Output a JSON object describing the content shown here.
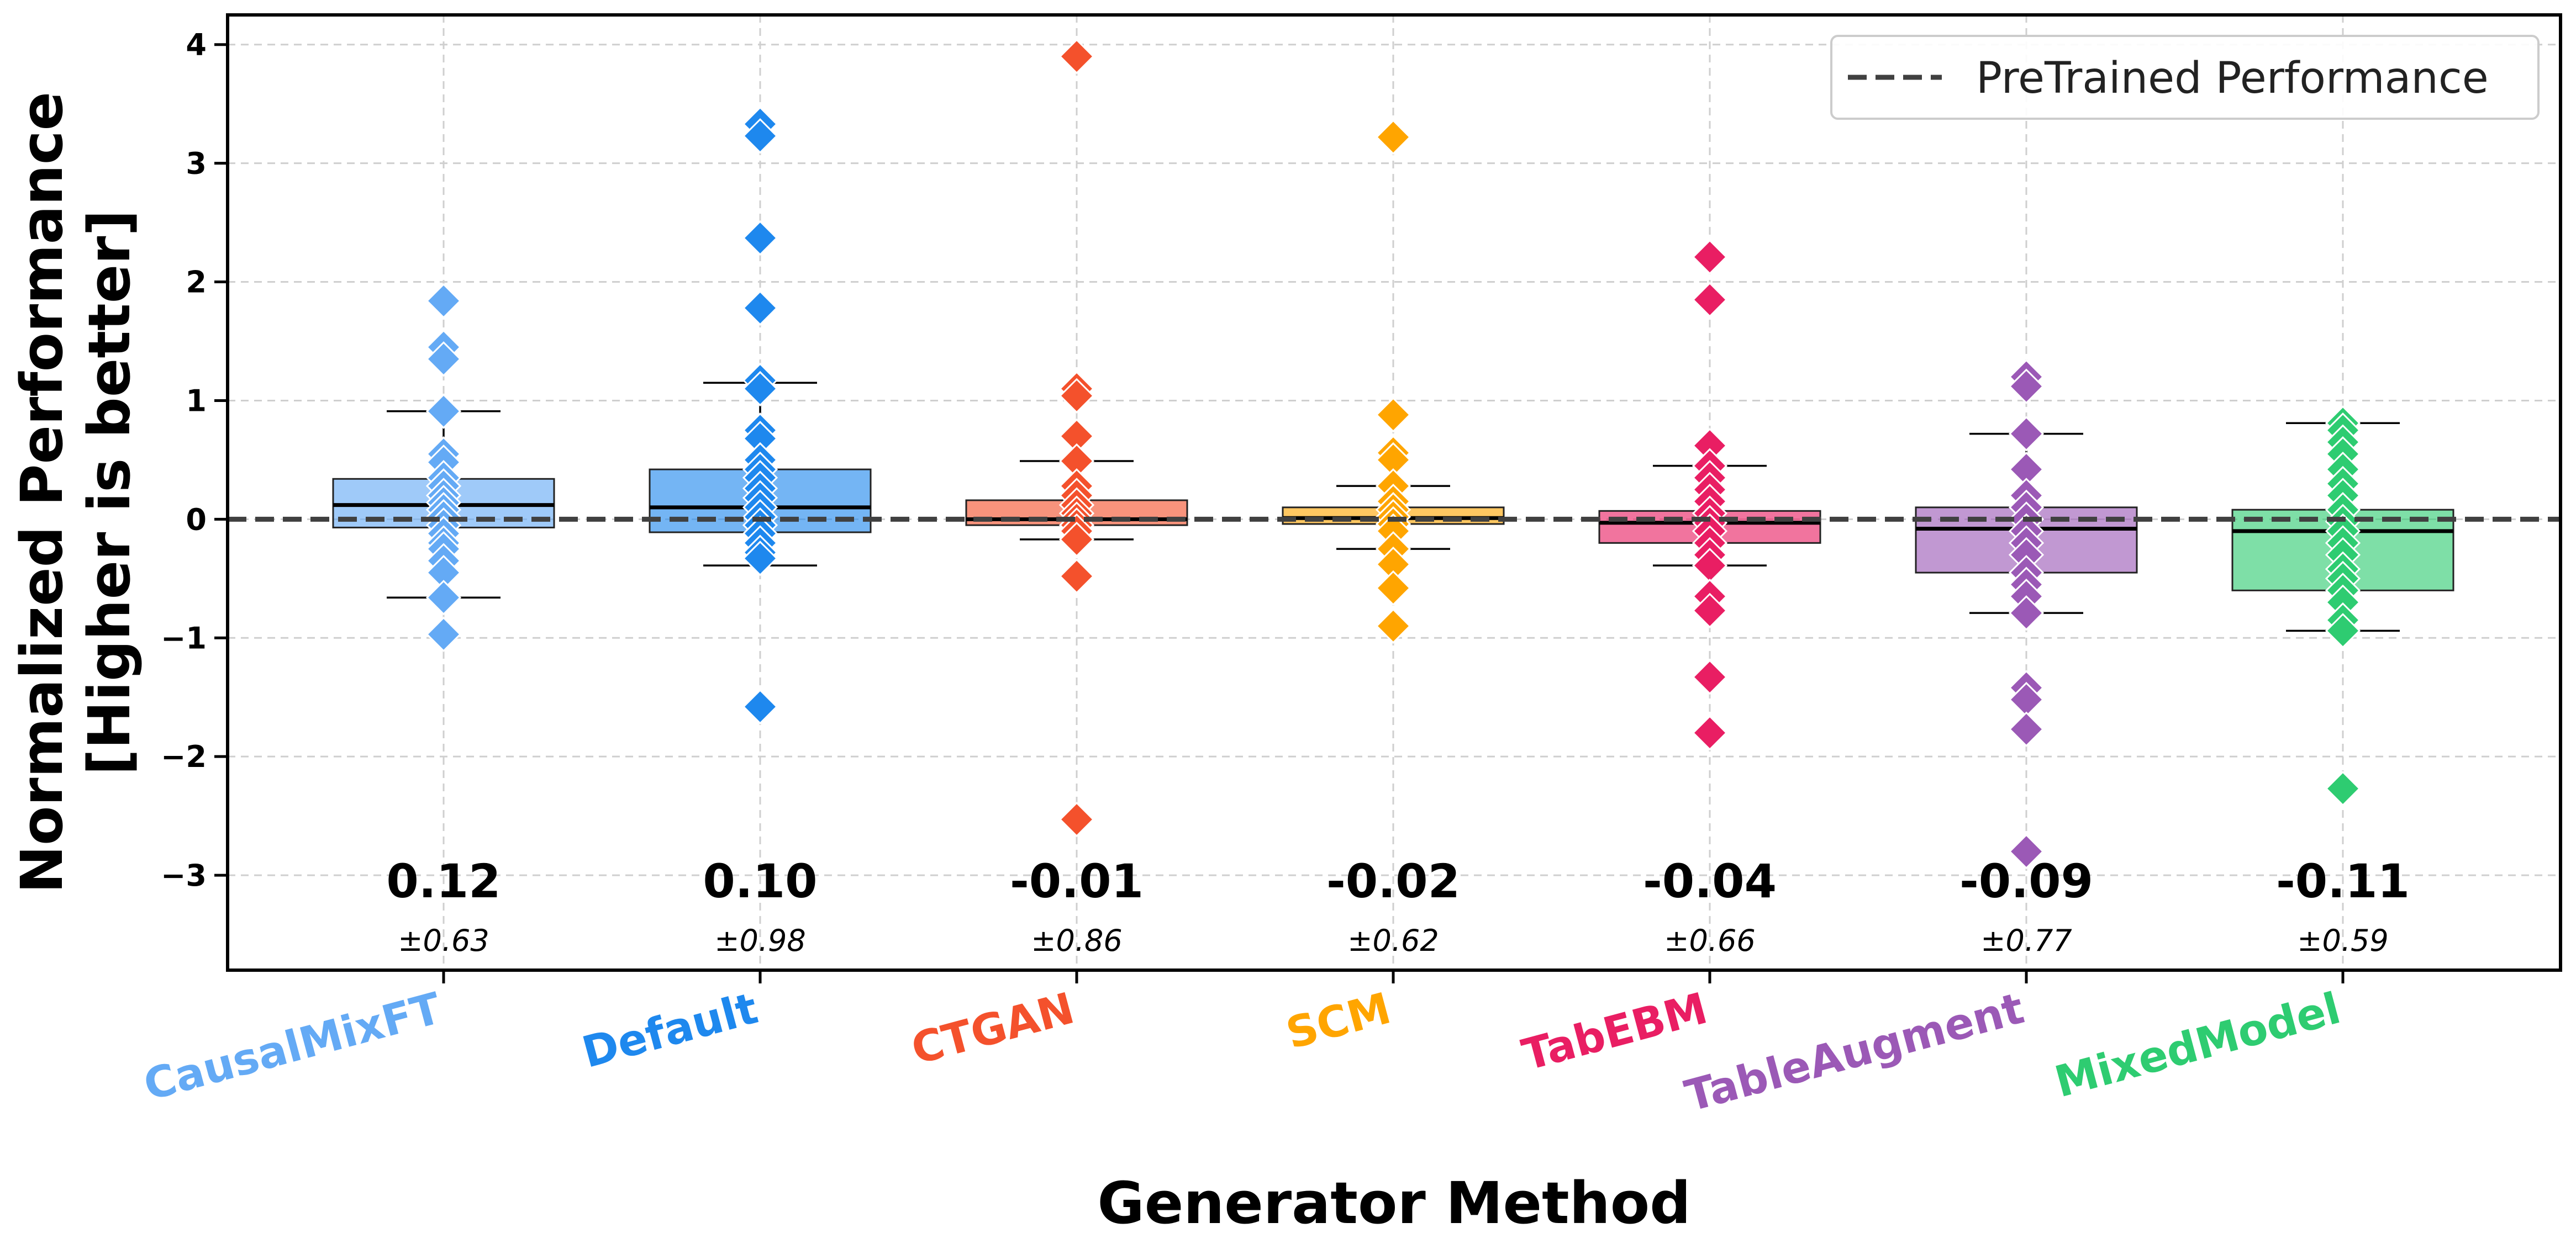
{
  "chart_data": {
    "type": "box",
    "xlabel": "Generator Method",
    "ylabel_lines": [
      "Normalized Performance",
      "[Higher is better]"
    ],
    "ylim": [
      -3.8,
      4.25
    ],
    "yticks": [
      -3,
      -2,
      -1,
      0,
      1,
      2,
      3,
      4
    ],
    "ytick_labels": [
      "−3",
      "−2",
      "−1",
      "0",
      "1",
      "2",
      "3",
      "4"
    ],
    "grid": true,
    "reference_line": {
      "label": "PreTrained Performance",
      "y": 0,
      "style": "dashed",
      "color": "#404040"
    },
    "legend_position": "top-right",
    "categories": [
      "CausalMixFT",
      "Default",
      "CTGAN",
      "SCM",
      "TabEBM",
      "TableAugment",
      "MixedModel"
    ],
    "colors": [
      "#64aaf5",
      "#1e88ee",
      "#f4512c",
      "#ffa500",
      "#e91e63",
      "#9b59b6",
      "#2ecc71"
    ],
    "series": [
      {
        "name": "CausalMixFT",
        "q1": -0.07,
        "median": 0.12,
        "q3": 0.34,
        "whisker_low": -0.66,
        "whisker_high": 0.91,
        "mean_label": "0.12",
        "std_label": "±0.63",
        "points": [
          1.84,
          1.45,
          1.35,
          0.91,
          0.55,
          0.48,
          0.35,
          0.28,
          0.2,
          0.14,
          0.08,
          0.02,
          -0.05,
          -0.12,
          -0.2,
          -0.25,
          -0.35,
          -0.45,
          -0.66,
          -0.97
        ]
      },
      {
        "name": "Default",
        "q1": -0.11,
        "median": 0.1,
        "q3": 0.42,
        "whisker_low": -0.39,
        "whisker_high": 1.15,
        "mean_label": "0.10",
        "std_label": "±0.98",
        "points": [
          3.33,
          3.23,
          2.37,
          1.78,
          1.17,
          1.1,
          0.75,
          0.68,
          0.5,
          0.42,
          0.35,
          0.26,
          0.18,
          0.1,
          0.02,
          -0.05,
          -0.12,
          -0.2,
          -0.28,
          -0.33,
          -1.58
        ]
      },
      {
        "name": "CTGAN",
        "q1": -0.05,
        "median": 0.0,
        "q3": 0.16,
        "whisker_low": -0.17,
        "whisker_high": 0.49,
        "mean_label": "-0.01",
        "std_label": "±0.86",
        "points": [
          3.9,
          1.1,
          1.04,
          0.7,
          0.49,
          0.28,
          0.2,
          0.12,
          0.05,
          0.0,
          -0.05,
          -0.1,
          -0.17,
          -0.48,
          -2.53
        ]
      },
      {
        "name": "SCM",
        "q1": -0.04,
        "median": 0.01,
        "q3": 0.1,
        "whisker_low": -0.25,
        "whisker_high": 0.28,
        "mean_label": "-0.02",
        "std_label": "±0.62",
        "points": [
          3.22,
          0.88,
          0.56,
          0.5,
          0.28,
          0.15,
          0.08,
          0.02,
          -0.04,
          -0.1,
          -0.25,
          -0.38,
          -0.58,
          -0.9
        ]
      },
      {
        "name": "TabEBM",
        "q1": -0.2,
        "median": -0.03,
        "q3": 0.07,
        "whisker_low": -0.39,
        "whisker_high": 0.45,
        "mean_label": "-0.04",
        "std_label": "±0.66",
        "points": [
          2.21,
          1.85,
          0.62,
          0.45,
          0.35,
          0.25,
          0.15,
          0.05,
          -0.03,
          -0.1,
          -0.2,
          -0.3,
          -0.39,
          -0.65,
          -0.77,
          -1.33,
          -1.8
        ]
      },
      {
        "name": "TableAugment",
        "q1": -0.45,
        "median": -0.08,
        "q3": 0.1,
        "whisker_low": -0.79,
        "whisker_high": 0.72,
        "mean_label": "-0.09",
        "std_label": "±0.77",
        "points": [
          1.2,
          1.12,
          0.72,
          0.42,
          0.2,
          0.1,
          0.0,
          -0.1,
          -0.2,
          -0.3,
          -0.45,
          -0.55,
          -0.65,
          -0.79,
          -1.42,
          -1.52,
          -1.77,
          -2.8
        ]
      },
      {
        "name": "MixedModel",
        "q1": -0.6,
        "median": -0.1,
        "q3": 0.08,
        "whisker_low": -0.94,
        "whisker_high": 0.81,
        "mean_label": "-0.11",
        "std_label": "±0.59",
        "points": [
          0.81,
          0.75,
          0.65,
          0.55,
          0.42,
          0.3,
          0.2,
          0.08,
          -0.02,
          -0.1,
          -0.2,
          -0.3,
          -0.42,
          -0.5,
          -0.6,
          -0.7,
          -0.85,
          -0.94,
          -2.27
        ]
      }
    ]
  }
}
